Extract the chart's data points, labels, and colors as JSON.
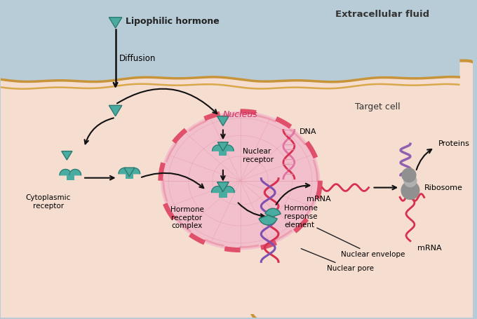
{
  "bg_extracellular": "#b8ccd8",
  "bg_cell": "#f5ddd0",
  "bg_nucleus": "#f2c0cc",
  "nucleus_border": "#e0506a",
  "cell_border_outer": "#c8943a",
  "cell_border_inner": "#d8a84a",
  "teal": "#4aaba0",
  "teal_dark": "#2a7a70",
  "arrow_color": "#111111",
  "red_strand": "#d83050",
  "purple_strand": "#8050b0",
  "pink_strand": "#e070a0",
  "gray_ribosome": "#909090",
  "purple_protein": "#9060b0",
  "web_color": "#e8a0b0",
  "label_extracellular": "Extracellular fluid",
  "label_target_cell": "Target cell",
  "label_nucleus": "Nucleus",
  "label_diffusion": "Diffusion",
  "label_lipophilic": "Lipophilic hormone",
  "label_cytoplasmic": "Cytoplasmic\nreceptor",
  "label_nuclear_receptor": "Nuclear\nreceptor",
  "label_hormone_receptor": "Hormone\nreceptor\ncomplex",
  "label_hormone_response": "Hormone\nresponse\nelement",
  "label_dna": "DNA",
  "label_mrna1": "mRNA",
  "label_mrna2": "mRNA",
  "label_ribosome": "Ribosome",
  "label_proteins": "Proteins",
  "label_nuclear_envelope": "Nuclear envelope",
  "label_nuclear_pore": "Nuclear pore"
}
